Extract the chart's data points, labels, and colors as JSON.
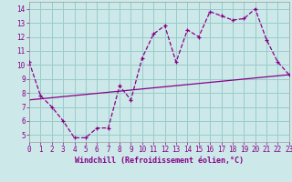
{
  "xlabel": "Windchill (Refroidissement éolien,°C)",
  "bg_color": "#cce8e8",
  "line_color": "#880088",
  "grid_color": "#99cccc",
  "x_data": [
    0,
    1,
    2,
    3,
    4,
    5,
    6,
    7,
    8,
    9,
    10,
    11,
    12,
    13,
    14,
    15,
    16,
    17,
    18,
    19,
    20,
    21,
    22,
    23
  ],
  "y_data": [
    10.2,
    7.8,
    7.0,
    6.0,
    4.8,
    4.8,
    5.5,
    5.5,
    8.5,
    7.5,
    10.5,
    12.2,
    12.8,
    10.2,
    12.5,
    12.0,
    13.8,
    13.5,
    13.2,
    13.3,
    14.0,
    11.8,
    10.2,
    9.3
  ],
  "trend_x": [
    0,
    23
  ],
  "trend_y": [
    7.5,
    9.3
  ],
  "xlim": [
    0,
    23
  ],
  "ylim": [
    4.5,
    14.5
  ],
  "yticks": [
    5,
    6,
    7,
    8,
    9,
    10,
    11,
    12,
    13,
    14
  ],
  "xticks": [
    0,
    1,
    2,
    3,
    4,
    5,
    6,
    7,
    8,
    9,
    10,
    11,
    12,
    13,
    14,
    15,
    16,
    17,
    18,
    19,
    20,
    21,
    22,
    23
  ]
}
